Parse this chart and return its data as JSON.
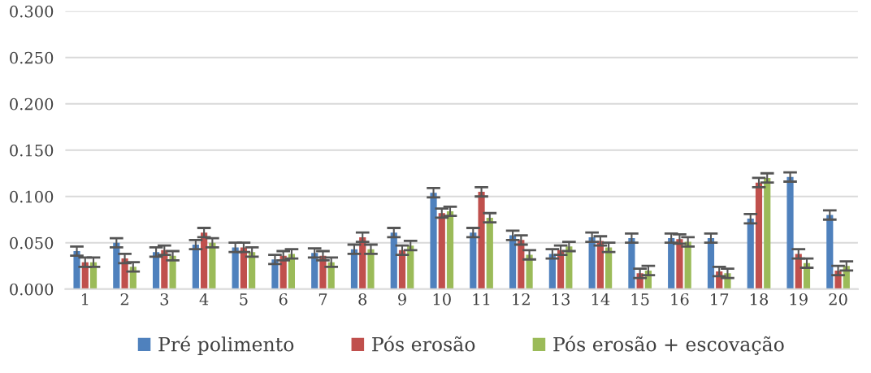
{
  "chart_data": {
    "type": "bar",
    "categories": [
      "1",
      "2",
      "3",
      "4",
      "5",
      "6",
      "7",
      "8",
      "9",
      "10",
      "11",
      "12",
      "13",
      "14",
      "15",
      "16",
      "17",
      "18",
      "19",
      "20"
    ],
    "series": [
      {
        "name": "Pré polimento",
        "color": "#4f81bd",
        "values": [
          0.041,
          0.05,
          0.04,
          0.048,
          0.045,
          0.032,
          0.039,
          0.043,
          0.061,
          0.104,
          0.061,
          0.058,
          0.038,
          0.056,
          0.055,
          0.055,
          0.055,
          0.076,
          0.121,
          0.08
        ],
        "errors": [
          0.005,
          0.005,
          0.005,
          0.005,
          0.005,
          0.005,
          0.005,
          0.005,
          0.005,
          0.005,
          0.005,
          0.005,
          0.005,
          0.005,
          0.005,
          0.005,
          0.005,
          0.005,
          0.005,
          0.005
        ]
      },
      {
        "name": "Pós erosão",
        "color": "#c0504d",
        "values": [
          0.029,
          0.033,
          0.042,
          0.061,
          0.045,
          0.036,
          0.036,
          0.056,
          0.042,
          0.082,
          0.105,
          0.053,
          0.042,
          0.052,
          0.017,
          0.054,
          0.019,
          0.115,
          0.038,
          0.02
        ],
        "errors": [
          0.005,
          0.005,
          0.005,
          0.005,
          0.005,
          0.005,
          0.005,
          0.005,
          0.005,
          0.005,
          0.005,
          0.005,
          0.005,
          0.005,
          0.005,
          0.005,
          0.005,
          0.005,
          0.005,
          0.005
        ]
      },
      {
        "name": "Pós erosão + escovação",
        "color": "#9bbb59",
        "values": [
          0.029,
          0.024,
          0.036,
          0.05,
          0.04,
          0.038,
          0.029,
          0.043,
          0.047,
          0.084,
          0.077,
          0.037,
          0.046,
          0.045,
          0.02,
          0.051,
          0.017,
          0.12,
          0.028,
          0.025
        ],
        "errors": [
          0.005,
          0.005,
          0.005,
          0.005,
          0.005,
          0.005,
          0.005,
          0.005,
          0.005,
          0.005,
          0.005,
          0.005,
          0.005,
          0.005,
          0.005,
          0.005,
          0.005,
          0.005,
          0.005,
          0.005
        ]
      }
    ],
    "ylim": [
      0,
      0.3
    ],
    "yticks": [
      {
        "value": 0,
        "label": "0.000"
      },
      {
        "value": 0.05,
        "label": "0.050"
      },
      {
        "value": 0.1,
        "label": "0.100"
      },
      {
        "value": 0.15,
        "label": "0.150"
      },
      {
        "value": 0.2,
        "label": "0.200"
      },
      {
        "value": 0.25,
        "label": "0.250"
      },
      {
        "value": 0.3,
        "label": "0.300"
      }
    ],
    "grid": "y",
    "legend": "bottom"
  }
}
